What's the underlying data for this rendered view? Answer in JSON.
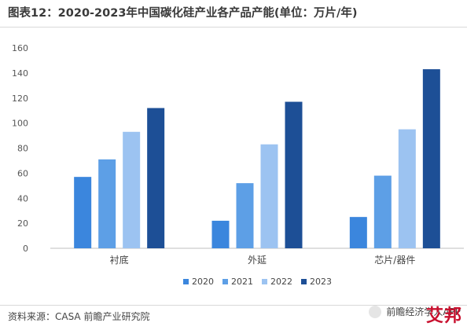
{
  "chart_data": {
    "type": "bar",
    "title": "图表12：2020-2023年中国碳化硅产业各产品产能(单位：万片/年)",
    "categories": [
      "衬底",
      "外延",
      "芯片/器件"
    ],
    "series": [
      {
        "name": "2020",
        "color": "#3b86dd",
        "values": [
          57,
          22,
          25
        ]
      },
      {
        "name": "2021",
        "color": "#5d9fe6",
        "values": [
          71,
          52,
          58
        ]
      },
      {
        "name": "2022",
        "color": "#9cc3f1",
        "values": [
          93,
          83,
          95
        ]
      },
      {
        "name": "2023",
        "color": "#1d4f96",
        "values": [
          112,
          117,
          143
        ]
      }
    ],
    "ylim": [
      0,
      160
    ],
    "yticks": [
      0,
      20,
      40,
      60,
      80,
      100,
      120,
      140,
      160
    ],
    "legend_position": "bottom",
    "grid": false
  },
  "footer": {
    "source": "资料来源：CASA 前瞻产业研究院",
    "brand": "前瞻经济学人APP",
    "corner_mark": "艾邦"
  }
}
